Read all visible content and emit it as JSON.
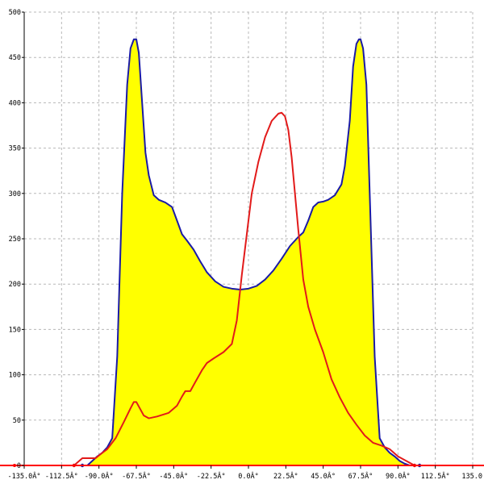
{
  "chart_data": {
    "type": "area",
    "title": "",
    "xlabel": "",
    "ylabel": "",
    "xlim": [
      -135,
      135
    ],
    "ylim": [
      0,
      500
    ],
    "grid": true,
    "legend": "none",
    "x_ticks": [
      -135,
      -112.5,
      -90,
      -67.5,
      -45,
      -22.5,
      0,
      22.5,
      45,
      67.5,
      90,
      112.5,
      135
    ],
    "x_tick_labels": [
      "-135.0Â°",
      "-112.5Â°",
      "-90.0Â°",
      "-67.5Â°",
      "-45.0Â°",
      "-22.5Â°",
      "0.0Â°",
      "22.5Â°",
      "45.0Â°",
      "67.5Â°",
      "90.0Â°",
      "112.5Â°",
      "135.0"
    ],
    "y_ticks": [
      0,
      50,
      100,
      150,
      200,
      250,
      300,
      350,
      400,
      450,
      500
    ],
    "y_tick_labels": [
      "0",
      "50",
      "100",
      "150",
      "200",
      "250",
      "300",
      "350",
      "400",
      "450",
      "500"
    ],
    "series": [
      {
        "color": "#1a1aa6",
        "fill": "#ffff00",
        "x": [
          -100,
          -97,
          -94,
          -91,
          -88,
          -85,
          -82,
          -79,
          -76,
          -73,
          -71,
          -69,
          -67.5,
          -66,
          -64,
          -62,
          -60,
          -57,
          -54,
          -50,
          -46,
          -43,
          -40,
          -37,
          -33,
          -29,
          -25,
          -20,
          -15,
          -10,
          -5,
          0,
          5,
          10,
          15,
          20,
          25,
          30,
          33,
          36,
          39,
          42,
          45,
          48,
          52,
          56,
          58,
          61,
          63,
          65,
          66.5,
          67.5,
          69,
          71,
          73,
          76,
          79,
          82,
          85,
          88,
          91,
          94,
          97,
          100,
          103
        ],
        "y": [
          0,
          0,
          5,
          10,
          14,
          20,
          30,
          120,
          300,
          420,
          460,
          470,
          470,
          455,
          400,
          345,
          320,
          298,
          293,
          290,
          285,
          270,
          255,
          248,
          238,
          225,
          213,
          203,
          197,
          195,
          194,
          195,
          198,
          205,
          215,
          228,
          242,
          252,
          257,
          270,
          285,
          290,
          291,
          293,
          298,
          310,
          330,
          380,
          440,
          465,
          470,
          470,
          460,
          420,
          300,
          120,
          30,
          20,
          14,
          10,
          5,
          2,
          0,
          0,
          0
        ]
      },
      {
        "color": "#e21a1a",
        "fill": "none",
        "x": [
          -105,
          -100,
          -96,
          -92,
          -88,
          -85,
          -80,
          -75,
          -71,
          -69,
          -67.5,
          -66,
          -63,
          -60,
          -55,
          -48,
          -43,
          -40,
          -38,
          -35,
          -32,
          -28,
          -25,
          -21,
          -15,
          -10,
          -7,
          -4,
          -1,
          2,
          6,
          10,
          14,
          18,
          20,
          22,
          24,
          26,
          28,
          30,
          33,
          36,
          40,
          45,
          50,
          55,
          60,
          65,
          70,
          75,
          80,
          85,
          90,
          95,
          100
        ],
        "y": [
          0,
          8,
          8,
          8,
          14,
          18,
          30,
          48,
          63,
          70,
          70,
          65,
          55,
          52,
          54,
          58,
          66,
          76,
          82,
          82,
          92,
          105,
          113,
          118,
          125,
          134,
          160,
          210,
          255,
          300,
          335,
          362,
          380,
          388,
          389,
          385,
          370,
          340,
          300,
          260,
          205,
          175,
          150,
          125,
          95,
          75,
          58,
          45,
          33,
          25,
          22,
          18,
          10,
          5,
          0
        ]
      }
    ],
    "baseline": {
      "color": "#ff0000",
      "y": 0
    }
  }
}
